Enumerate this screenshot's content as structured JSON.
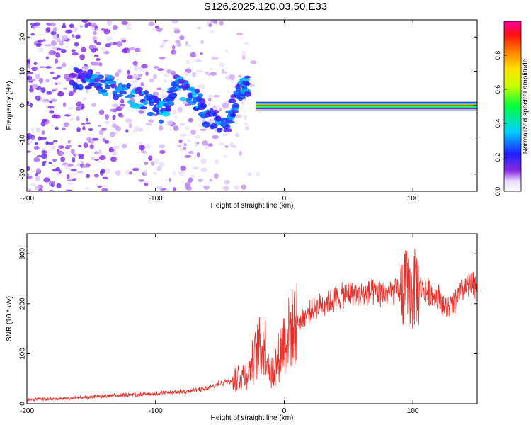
{
  "title": "S126.2025.120.03.50.E33",
  "colors": {
    "axis": "#000000",
    "snr_line": "#e8302a",
    "spectrum_ridge": "#ff2a1a"
  },
  "chart_data": [
    {
      "type": "heatmap",
      "xlabel": "Height of straight line (km)",
      "ylabel": "Frequency (Hz)",
      "xlim": [
        -200,
        150
      ],
      "ylim": [
        -25,
        25
      ],
      "x_ticks": [
        -200,
        -100,
        0,
        100
      ],
      "y_ticks": [
        -20,
        -10,
        0,
        10,
        20
      ],
      "x_tick_labels": [
        "-200",
        "-100",
        "0",
        "100"
      ],
      "y_tick_labels": [
        "-20",
        "-10",
        "0",
        "10",
        "20"
      ],
      "grid": false,
      "colorbar": {
        "label": "Normalized spectral amplitude",
        "range": [
          0,
          1
        ],
        "ticks": [
          "0.0",
          "0.2",
          "0.4",
          "0.6",
          "0.8"
        ],
        "colormap": "rainbow (white - violet - blue - cyan - green - yellow - orange - red - magenta)"
      },
      "features": {
        "noise_region_x": [
          -200,
          -20
        ],
        "scattered_trace_points": [
          {
            "x": -165,
            "y": 8,
            "amp": 0.25
          },
          {
            "x": -150,
            "y": 7,
            "amp": 0.3
          },
          {
            "x": -130,
            "y": 5,
            "amp": 0.3
          },
          {
            "x": -110,
            "y": 2,
            "amp": 0.35
          },
          {
            "x": -95,
            "y": -2,
            "amp": 0.35
          },
          {
            "x": -85,
            "y": 6,
            "amp": 0.3
          },
          {
            "x": -70,
            "y": 3,
            "amp": 0.35
          },
          {
            "x": -60,
            "y": -3,
            "amp": 0.3
          },
          {
            "x": -45,
            "y": -6,
            "amp": 0.3
          },
          {
            "x": -35,
            "y": 4,
            "amp": 0.3
          },
          {
            "x": -28,
            "y": 6,
            "amp": 0.35
          }
        ],
        "stable_ridge": {
          "x_start": -22,
          "x_end": 150,
          "frequency": 0,
          "amp": 0.9
        }
      }
    },
    {
      "type": "line",
      "xlabel": "Height of straight line (km)",
      "ylabel": "SNR (10 * v/v)",
      "xlim": [
        -200,
        150
      ],
      "ylim": [
        0,
        340
      ],
      "x_ticks": [
        -200,
        -100,
        0,
        100
      ],
      "y_ticks": [
        0,
        100,
        200,
        300
      ],
      "x_tick_labels": [
        "-200",
        "-100",
        "0",
        "100"
      ],
      "y_tick_labels": [
        "0",
        "100",
        "200",
        "300"
      ],
      "grid": false,
      "series": [
        {
          "x": [
            -200,
            -180,
            -160,
            -140,
            -120,
            -100,
            -80,
            -60,
            -50,
            -40,
            -30,
            -25,
            -20,
            -15,
            -10,
            -5,
            0,
            10,
            20,
            30,
            40,
            50,
            60,
            70,
            80,
            90,
            95,
            100,
            102,
            110,
            120,
            125,
            130,
            140,
            150
          ],
          "y": [
            8,
            10,
            12,
            15,
            18,
            20,
            24,
            30,
            40,
            50,
            60,
            80,
            110,
            120,
            60,
            90,
            130,
            160,
            185,
            200,
            210,
            220,
            218,
            222,
            220,
            225,
            230,
            215,
            235,
            225,
            215,
            190,
            195,
            230,
            240
          ]
        }
      ]
    }
  ]
}
